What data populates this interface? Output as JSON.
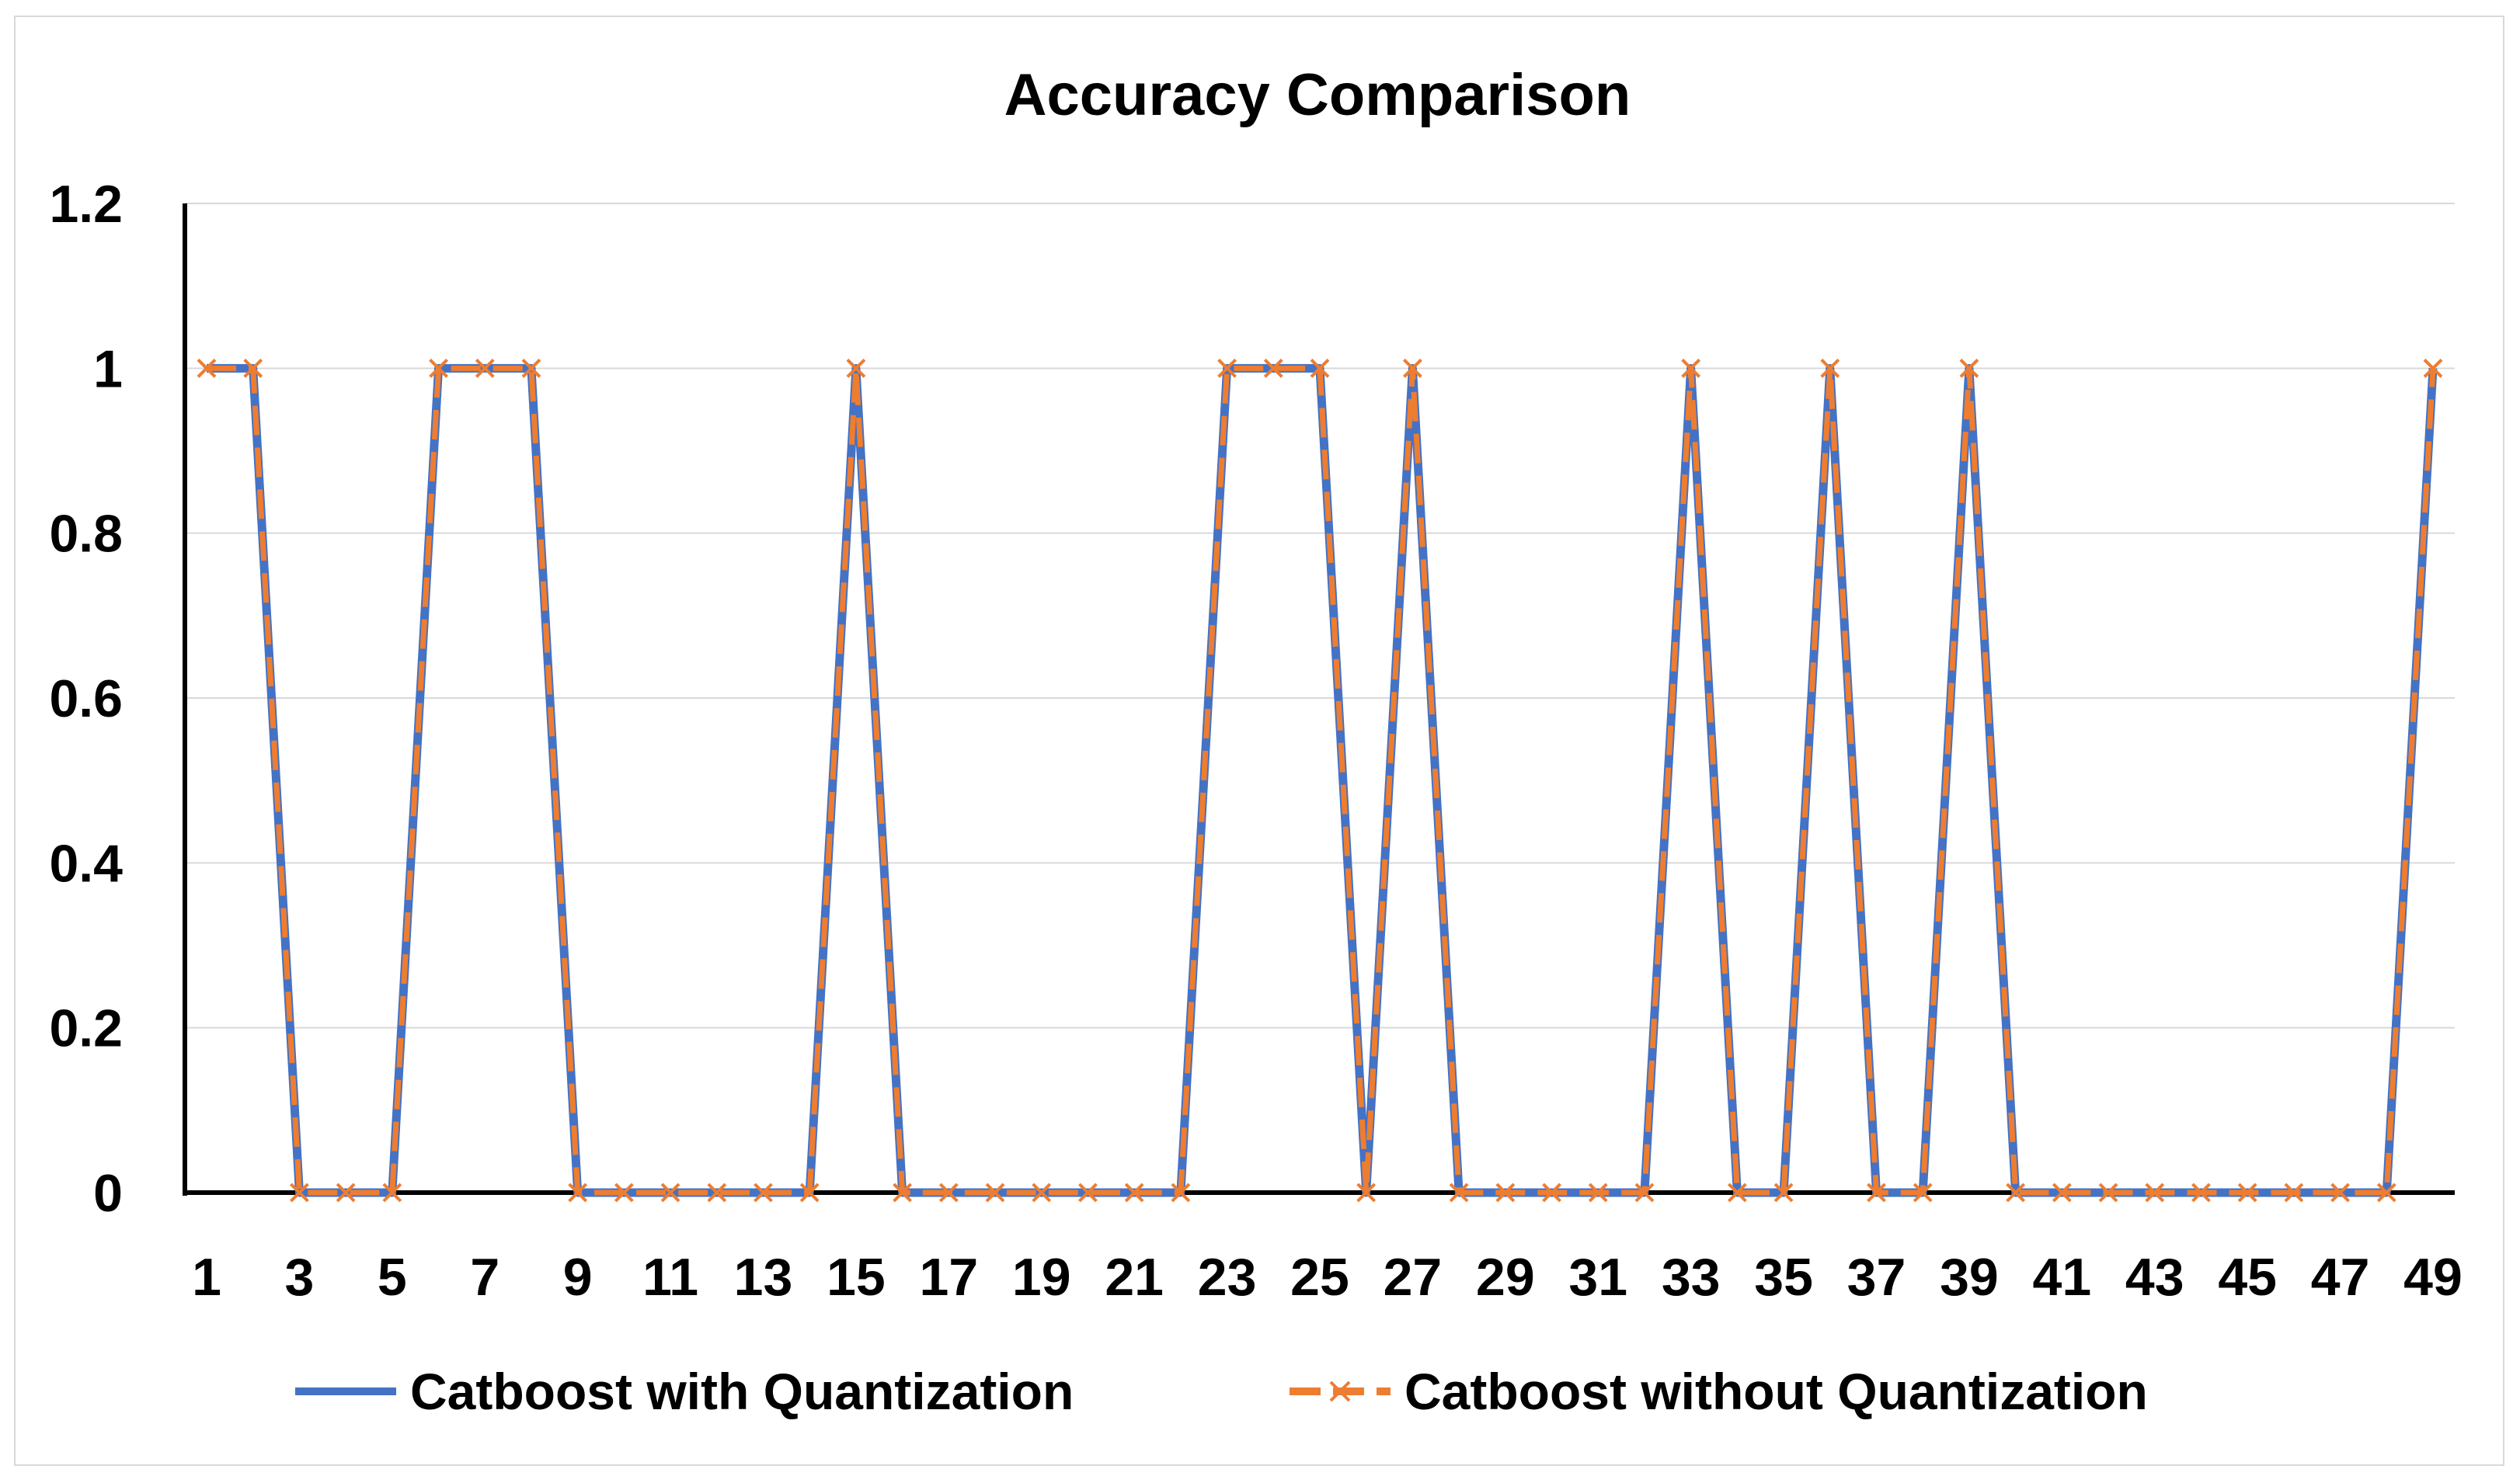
{
  "chart_data": {
    "type": "line",
    "title": "Accuracy Comparison",
    "xlabel": "",
    "ylabel": "",
    "ylim": [
      0,
      1.2
    ],
    "yticks": [
      "0",
      "0.2",
      "0.4",
      "0.6",
      "0.8",
      "1",
      "1.2"
    ],
    "grid": true,
    "legend_position": "bottom",
    "x": [
      1,
      2,
      3,
      4,
      5,
      6,
      7,
      8,
      9,
      10,
      11,
      12,
      13,
      14,
      15,
      16,
      17,
      18,
      19,
      20,
      21,
      22,
      23,
      24,
      25,
      26,
      27,
      28,
      29,
      30,
      31,
      32,
      33,
      34,
      35,
      36,
      37,
      38,
      39,
      40,
      41,
      42,
      43,
      44,
      45,
      46,
      47,
      48,
      49
    ],
    "xtick_labels": [
      "1",
      "3",
      "5",
      "7",
      "9",
      "11",
      "13",
      "15",
      "17",
      "19",
      "21",
      "23",
      "25",
      "27",
      "29",
      "31",
      "33",
      "35",
      "37",
      "39",
      "41",
      "43",
      "45",
      "47",
      "49"
    ],
    "series": [
      {
        "name": "Catboost with Quantization",
        "color": "#4472c4",
        "style": "solid",
        "values": [
          1,
          1,
          0,
          0,
          0,
          1,
          1,
          1,
          0,
          0,
          0,
          0,
          0,
          0,
          1,
          0,
          0,
          0,
          0,
          0,
          0,
          0,
          1,
          1,
          1,
          0,
          1,
          0,
          0,
          0,
          0,
          0,
          1,
          0,
          0,
          1,
          0,
          0,
          1,
          0,
          0,
          0,
          0,
          0,
          0,
          0,
          0,
          0,
          1
        ]
      },
      {
        "name": "Catboost without Quantization",
        "color": "#ed7d31",
        "style": "dashed",
        "marker": "x",
        "values": [
          1,
          1,
          0,
          0,
          0,
          1,
          1,
          1,
          0,
          0,
          0,
          0,
          0,
          0,
          1,
          0,
          0,
          0,
          0,
          0,
          0,
          0,
          1,
          1,
          1,
          0,
          1,
          0,
          0,
          0,
          0,
          0,
          1,
          0,
          0,
          1,
          0,
          0,
          1,
          0,
          0,
          0,
          0,
          0,
          0,
          0,
          0,
          0,
          1
        ]
      }
    ]
  }
}
